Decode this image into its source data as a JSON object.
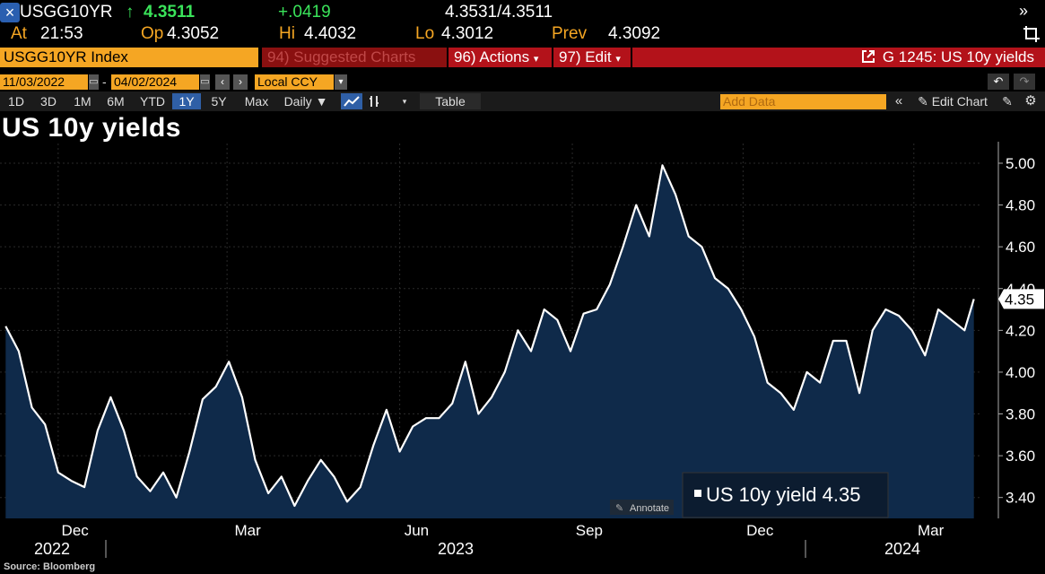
{
  "quote": {
    "close_icon": "close-icon",
    "ticker": "USGG10YR",
    "arrow": "↑",
    "last": "4.3511",
    "change": "+.0419",
    "bid_ask": "4.3531/4.3511",
    "at_label": "At",
    "at_value": "21:53",
    "op_label": "Op",
    "op_value": "4.3052",
    "hi_label": "Hi",
    "hi_value": "4.4032",
    "lo_label": "Lo",
    "lo_value": "4.3012",
    "prev_label": "Prev",
    "prev_value": "4.3092",
    "expand_icon": "double-chevron-right-icon",
    "crop_icon": "crop-icon"
  },
  "toolbar1": {
    "security": "USGG10YR Index",
    "suggested": "94) Suggested Charts",
    "actions": "96) Actions",
    "edit": "97) Edit",
    "graph": "G 1245: US 10y yields",
    "external_icon": "external-link-icon"
  },
  "toolbar2": {
    "start_date": "11/03/2022",
    "end_date": "04/02/2024",
    "dash": "-",
    "currency": "Local CCY",
    "undo_icon": "undo-icon",
    "redo_icon": "redo-icon"
  },
  "toolbar3": {
    "ranges": [
      "1D",
      "3D",
      "1M",
      "6M",
      "YTD",
      "1Y",
      "5Y",
      "Max"
    ],
    "active_range": "1Y",
    "frequency": "Daily",
    "table": "Table",
    "add_data_placeholder": "Add Data",
    "edit_chart": "Edit Chart"
  },
  "chart_data": {
    "type": "area",
    "title": "US 10y yields",
    "series_name": "US 10y yield",
    "last_value_label": "4.35",
    "legend_text": "US 10y yield 4.35",
    "annotate_label": "Annotate",
    "source": "Source: Bloomberg",
    "x_tick_labels": [
      "Dec",
      "Mar",
      "Jun",
      "Sep",
      "Dec",
      "Mar"
    ],
    "x_year_labels": [
      "2022",
      "2023",
      "2024"
    ],
    "y_ticks": [
      "5.00",
      "4.80",
      "4.60",
      "4.40",
      "4.20",
      "4.00",
      "3.80",
      "3.60",
      "3.40"
    ],
    "ylim": [
      3.3,
      5.06
    ],
    "colors": {
      "line": "#ffffff",
      "fill": "#0f2a4a",
      "background": "#000000",
      "accent": "#f5a623"
    },
    "x": [
      "2022-11-03",
      "2022-11-10",
      "2022-11-17",
      "2022-11-24",
      "2022-12-01",
      "2022-12-08",
      "2022-12-15",
      "2022-12-22",
      "2022-12-29",
      "2023-01-05",
      "2023-01-12",
      "2023-01-19",
      "2023-01-26",
      "2023-02-02",
      "2023-02-09",
      "2023-02-16",
      "2023-02-23",
      "2023-03-02",
      "2023-03-09",
      "2023-03-16",
      "2023-03-23",
      "2023-03-30",
      "2023-04-06",
      "2023-04-13",
      "2023-04-20",
      "2023-04-27",
      "2023-05-04",
      "2023-05-11",
      "2023-05-18",
      "2023-05-25",
      "2023-06-01",
      "2023-06-08",
      "2023-06-15",
      "2023-06-22",
      "2023-06-29",
      "2023-07-06",
      "2023-07-13",
      "2023-07-20",
      "2023-07-27",
      "2023-08-03",
      "2023-08-10",
      "2023-08-17",
      "2023-08-24",
      "2023-08-31",
      "2023-09-07",
      "2023-09-14",
      "2023-09-21",
      "2023-09-28",
      "2023-10-05",
      "2023-10-12",
      "2023-10-19",
      "2023-10-26",
      "2023-11-02",
      "2023-11-09",
      "2023-11-16",
      "2023-11-23",
      "2023-11-30",
      "2023-12-07",
      "2023-12-14",
      "2023-12-21",
      "2023-12-28",
      "2024-01-04",
      "2024-01-11",
      "2024-01-18",
      "2024-01-25",
      "2024-02-01",
      "2024-02-08",
      "2024-02-15",
      "2024-02-22",
      "2024-02-29",
      "2024-03-07",
      "2024-03-14",
      "2024-03-21",
      "2024-03-28",
      "2024-04-02"
    ],
    "values": [
      4.22,
      4.1,
      3.83,
      3.75,
      3.52,
      3.48,
      3.45,
      3.72,
      3.88,
      3.72,
      3.5,
      3.43,
      3.52,
      3.4,
      3.62,
      3.87,
      3.93,
      4.05,
      3.88,
      3.58,
      3.42,
      3.5,
      3.36,
      3.48,
      3.58,
      3.5,
      3.38,
      3.45,
      3.65,
      3.82,
      3.62,
      3.74,
      3.78,
      3.78,
      3.85,
      4.05,
      3.8,
      3.88,
      4.0,
      4.2,
      4.1,
      4.3,
      4.25,
      4.1,
      4.28,
      4.3,
      4.42,
      4.6,
      4.8,
      4.65,
      4.99,
      4.85,
      4.65,
      4.6,
      4.45,
      4.4,
      4.3,
      4.17,
      3.95,
      3.9,
      3.82,
      4.0,
      3.95,
      4.15,
      4.15,
      3.9,
      4.2,
      4.3,
      4.27,
      4.2,
      4.08,
      4.3,
      4.25,
      4.2,
      4.35
    ]
  }
}
